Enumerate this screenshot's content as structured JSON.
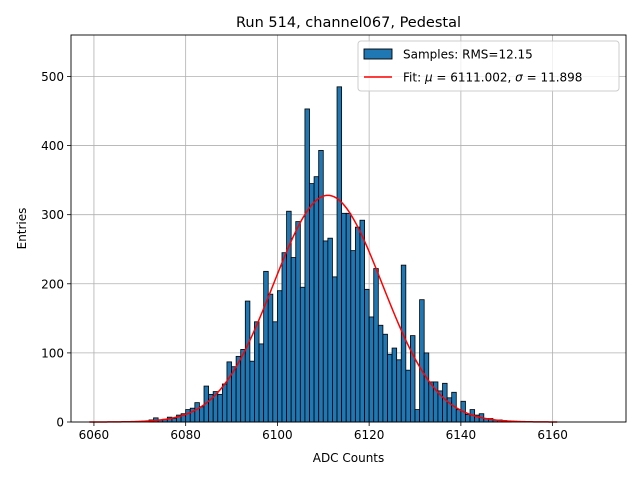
{
  "chart_data": {
    "type": "bar",
    "title": "Run 514, channel067, Pedestal",
    "xlabel": "ADC Counts",
    "ylabel": "Entries",
    "xlim": [
      6055,
      6176
    ],
    "ylim": [
      0,
      560
    ],
    "xticks": [
      6060,
      6080,
      6100,
      6120,
      6140,
      6160
    ],
    "yticks": [
      0,
      100,
      200,
      300,
      400,
      500
    ],
    "grid": true,
    "bin_width": 1,
    "bar_color": "#1f77b4",
    "fit_color": "#ff0000",
    "legend": {
      "position": "top-right",
      "samples_label": "Samples: RMS=12.15",
      "fit_prefix": "Fit: ",
      "mu_symbol": "μ",
      "mu_text": " = 6111.002, ",
      "sigma_symbol": "σ",
      "sigma_text": " = 11.898"
    },
    "fit": {
      "mu": 6111.002,
      "sigma": 11.898,
      "amplitude": 328,
      "x_range": [
        6059,
        6161
      ]
    },
    "bins": {
      "x": [
        6072,
        6073,
        6074,
        6075,
        6076,
        6077,
        6078,
        6079,
        6080,
        6081,
        6082,
        6083,
        6084,
        6085,
        6086,
        6087,
        6088,
        6089,
        6090,
        6091,
        6092,
        6093,
        6094,
        6095,
        6096,
        6097,
        6098,
        6099,
        6100,
        6101,
        6102,
        6103,
        6104,
        6105,
        6106,
        6107,
        6108,
        6109,
        6110,
        6111,
        6112,
        6113,
        6114,
        6115,
        6116,
        6117,
        6118,
        6119,
        6120,
        6121,
        6122,
        6123,
        6124,
        6125,
        6126,
        6127,
        6128,
        6129,
        6130,
        6131,
        6132,
        6133,
        6134,
        6135,
        6136,
        6137,
        6138,
        6139,
        6140,
        6141,
        6142,
        6143,
        6144,
        6145,
        6146,
        6147,
        6148,
        6149,
        6150
      ],
      "values": [
        3,
        6,
        3,
        4,
        7,
        5,
        10,
        12,
        18,
        20,
        28,
        22,
        52,
        40,
        44,
        40,
        55,
        87,
        80,
        95,
        105,
        175,
        88,
        145,
        113,
        218,
        185,
        145,
        190,
        245,
        305,
        238,
        290,
        195,
        453,
        345,
        355,
        393,
        262,
        266,
        210,
        485,
        302,
        302,
        248,
        282,
        292,
        192,
        152,
        222,
        140,
        127,
        98,
        107,
        90,
        227,
        75,
        125,
        18,
        177,
        100,
        58,
        58,
        45,
        56,
        35,
        43,
        18,
        30,
        11,
        18,
        10,
        12,
        5,
        5,
        3,
        3,
        2,
        1
      ]
    }
  }
}
